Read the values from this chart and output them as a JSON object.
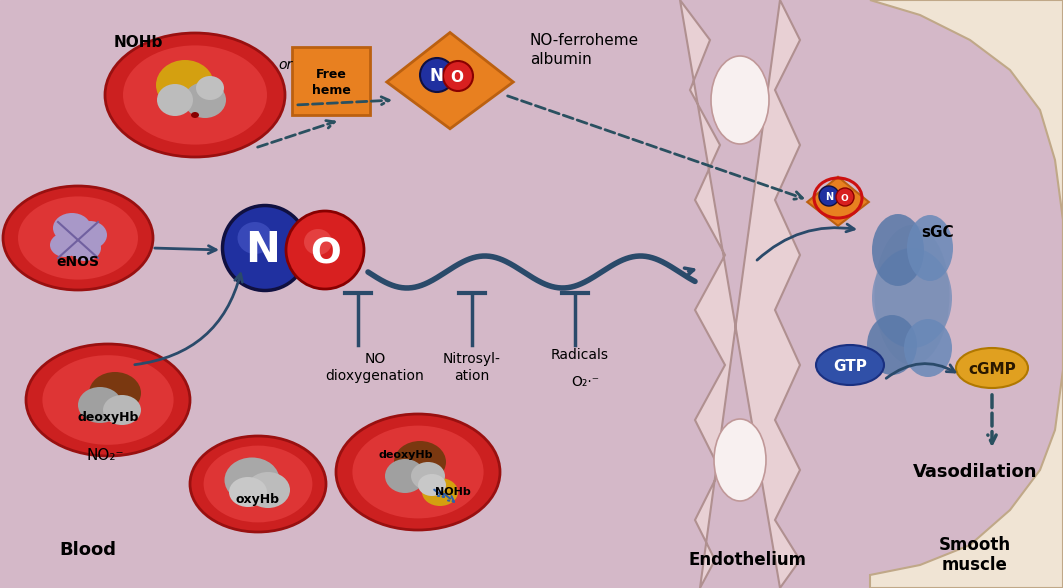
{
  "bg_color": "#d4b8c8",
  "arrow_color": "#2a4a6a",
  "dashed_color": "#2a5060",
  "rbc_outer": "#cc2222",
  "rbc_inner": "#e03333",
  "labels": {
    "NOHb": "NOHb",
    "or": "or",
    "free_heme": "Free\nheme",
    "eNOS": "eNOS",
    "NO_ferroheme_albumin": "NO-ferroheme\nalbumin",
    "no_dioxygenation": "NO\ndioxygenation",
    "nitrosylation": "Nitrosyl-\nation",
    "radicals": "Radicals",
    "O2_radical": "O₂·⁻",
    "deoxyHb": "deoxyHb",
    "oxyHb": "oxyHb",
    "NOHb2": "NOHb",
    "deoxyHb2": "deoxyHb",
    "NO2_minus": "NO₂⁻",
    "Blood": "Blood",
    "sGC": "sGC",
    "GTP": "GTP",
    "cGMP": "cGMP",
    "Vasodilation": "Vasodilation",
    "Endothelium": "Endothelium",
    "Smooth_muscle": "Smooth\nmuscle"
  }
}
